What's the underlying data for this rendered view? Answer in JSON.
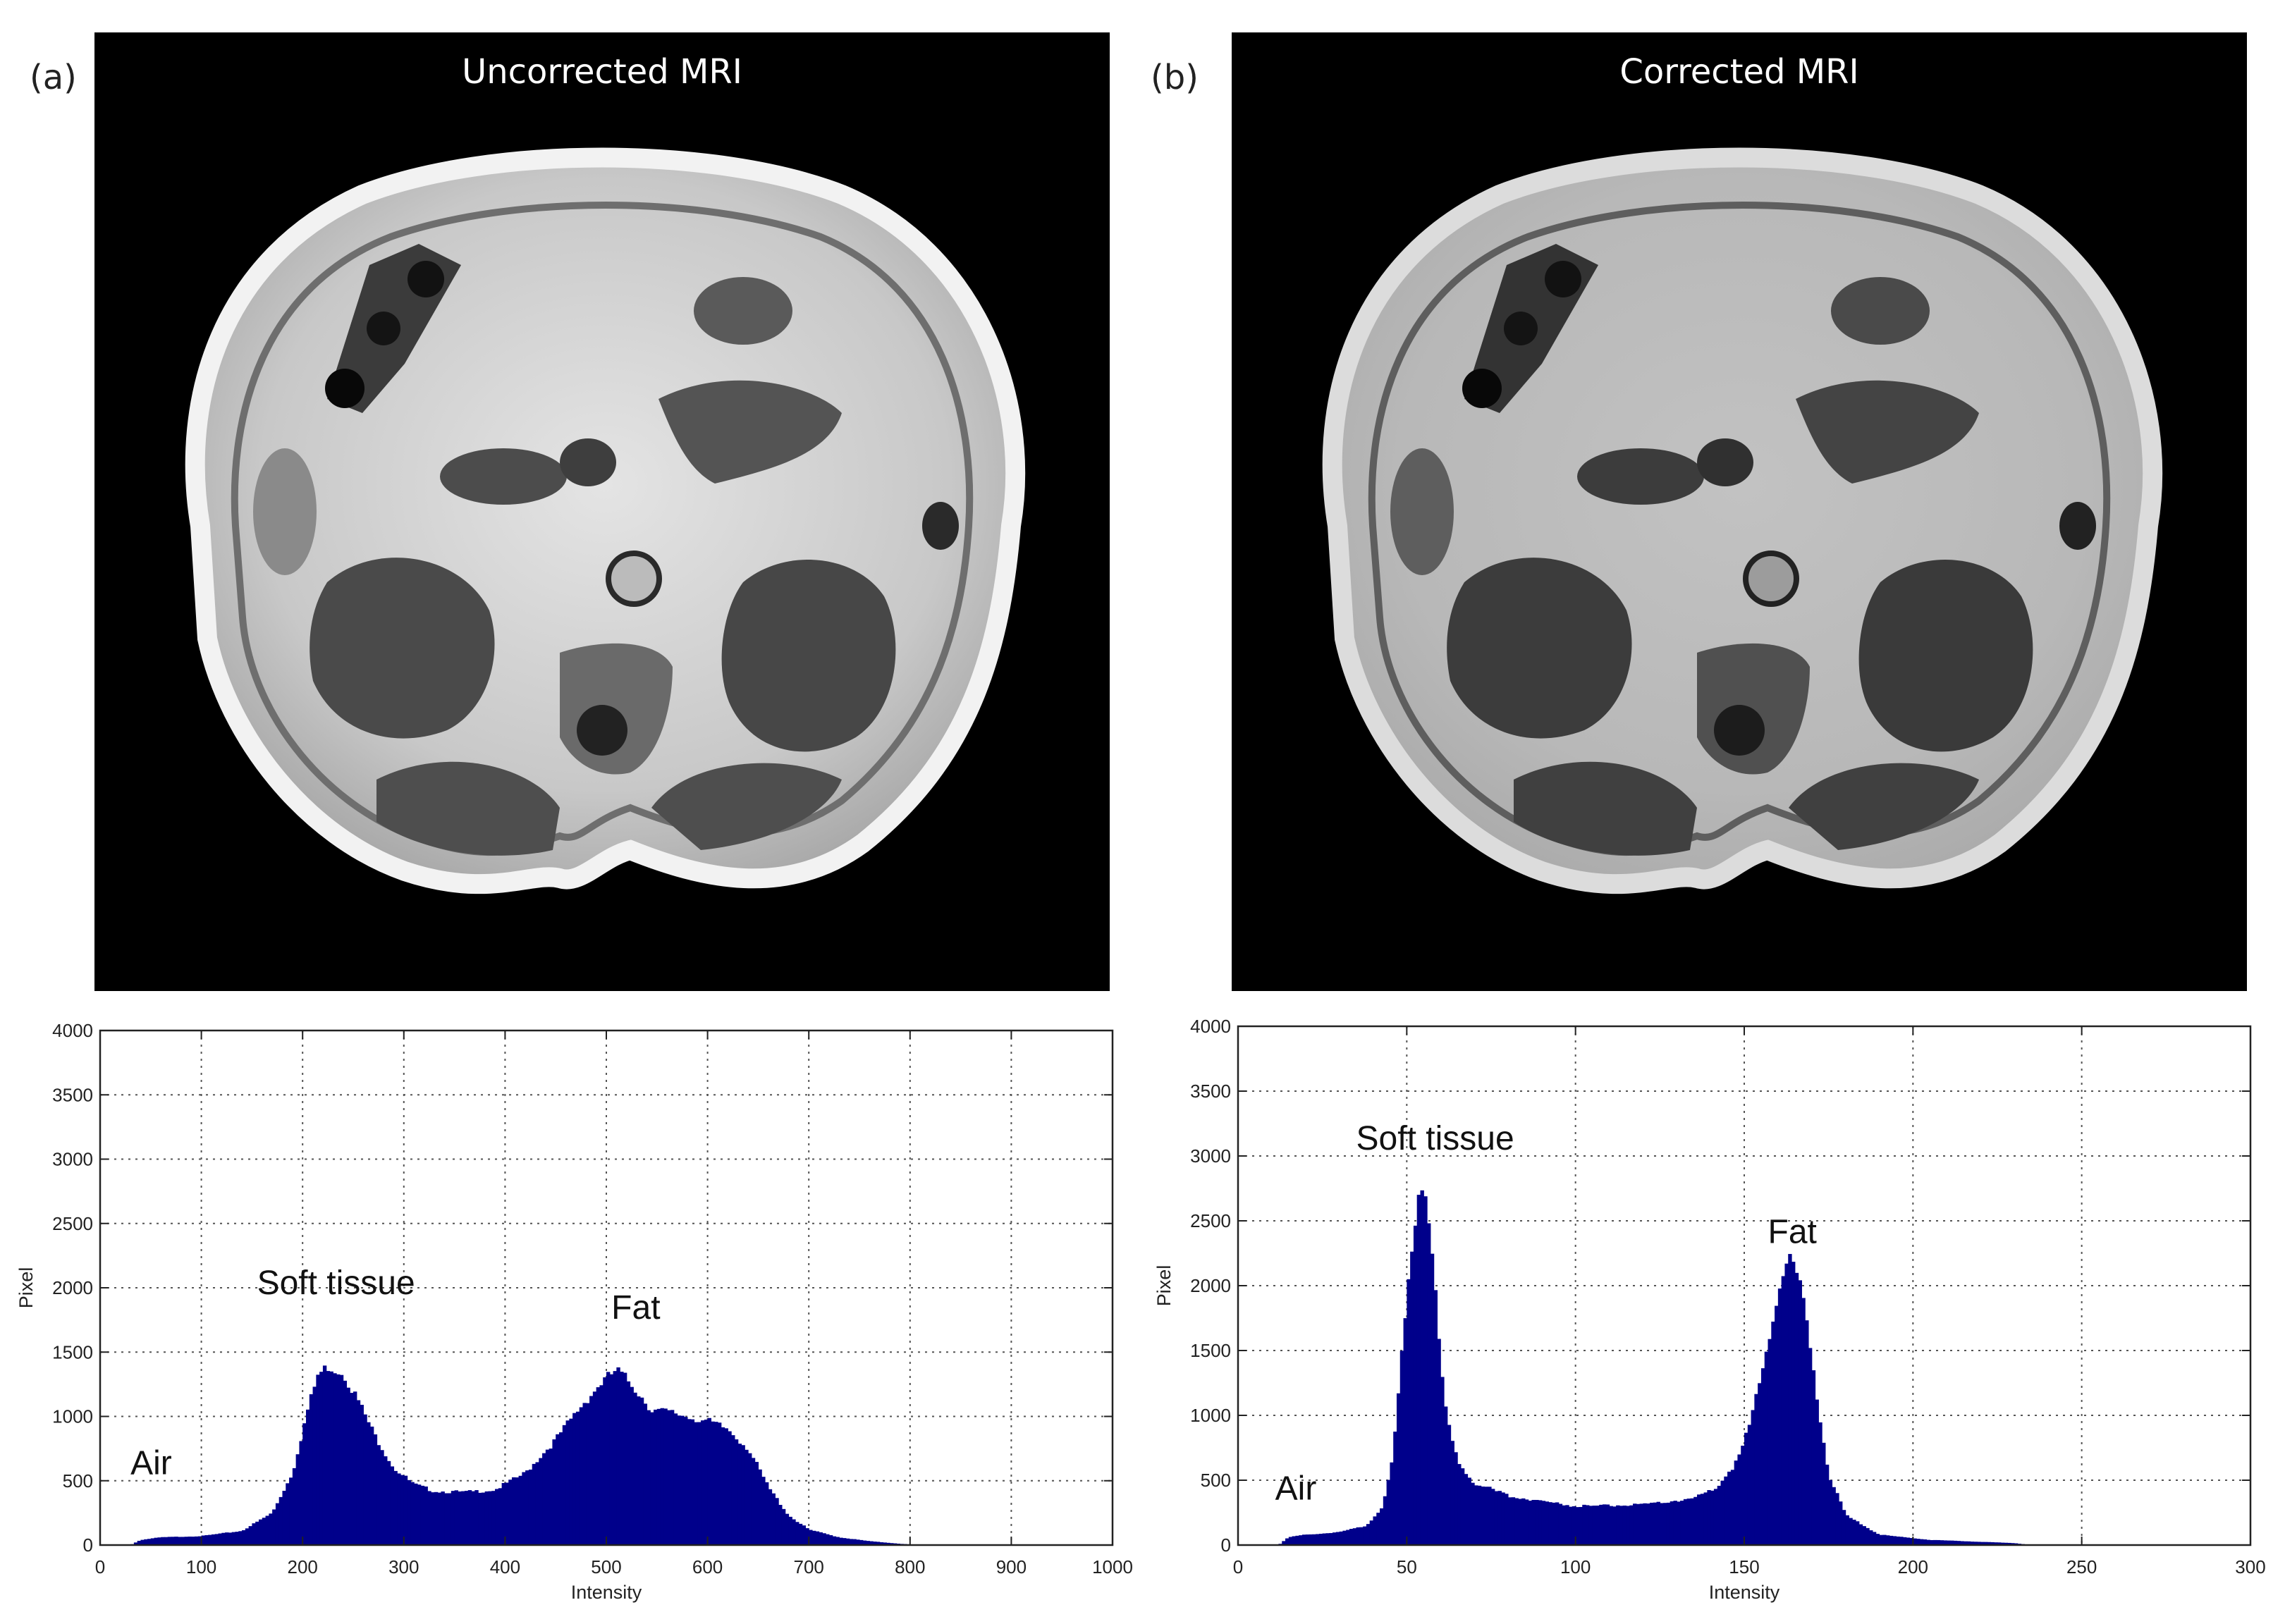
{
  "panels": [
    {
      "letter": "(a)",
      "title": "Uncorrected MRI"
    },
    {
      "letter": "(b)",
      "title": "Corrected MRI"
    }
  ],
  "chart_data": [
    {
      "type": "bar",
      "xlabel": "Intensity",
      "ylabel": "Pixel",
      "xlim": [
        0,
        1000
      ],
      "ylim": [
        0,
        4000
      ],
      "xticks": [
        0,
        100,
        200,
        300,
        400,
        500,
        600,
        700,
        800,
        900,
        1000
      ],
      "yticks": [
        0,
        500,
        1000,
        1500,
        2000,
        2500,
        3000,
        3500,
        4000
      ],
      "grid": true,
      "color": "#00008b",
      "annotations": [
        {
          "text": "Air",
          "x": 30,
          "y": 550
        },
        {
          "text": "Soft tissue",
          "x": 155,
          "y": 1950
        },
        {
          "text": "Fat",
          "x": 505,
          "y": 1760
        }
      ],
      "profile": [
        [
          30,
          0
        ],
        [
          40,
          40
        ],
        [
          60,
          60
        ],
        [
          100,
          70
        ],
        [
          140,
          110
        ],
        [
          170,
          250
        ],
        [
          190,
          560
        ],
        [
          205,
          1050
        ],
        [
          215,
          1320
        ],
        [
          225,
          1390
        ],
        [
          240,
          1340
        ],
        [
          255,
          1120
        ],
        [
          270,
          870
        ],
        [
          290,
          600
        ],
        [
          310,
          470
        ],
        [
          330,
          420
        ],
        [
          360,
          410
        ],
        [
          390,
          430
        ],
        [
          420,
          560
        ],
        [
          450,
          820
        ],
        [
          475,
          1080
        ],
        [
          495,
          1260
        ],
        [
          510,
          1360
        ],
        [
          525,
          1250
        ],
        [
          545,
          1050
        ],
        [
          570,
          1020
        ],
        [
          600,
          960
        ],
        [
          620,
          900
        ],
        [
          640,
          750
        ],
        [
          660,
          450
        ],
        [
          680,
          230
        ],
        [
          700,
          120
        ],
        [
          730,
          60
        ],
        [
          760,
          30
        ],
        [
          790,
          10
        ],
        [
          810,
          0
        ]
      ]
    },
    {
      "type": "bar",
      "xlabel": "Intensity",
      "ylabel": "Pixel",
      "xlim": [
        0,
        300
      ],
      "ylim": [
        0,
        4000
      ],
      "xticks": [
        0,
        50,
        100,
        150,
        200,
        250,
        300
      ],
      "yticks": [
        0,
        500,
        1000,
        1500,
        2000,
        2500,
        3000,
        3500,
        4000
      ],
      "grid": true,
      "color": "#00008b",
      "annotations": [
        {
          "text": "Air",
          "x": 11,
          "y": 350
        },
        {
          "text": "Soft tissue",
          "x": 35,
          "y": 3050
        },
        {
          "text": "Fat",
          "x": 157,
          "y": 2330
        }
      ],
      "profile": [
        [
          12,
          0
        ],
        [
          15,
          60
        ],
        [
          20,
          80
        ],
        [
          30,
          100
        ],
        [
          38,
          150
        ],
        [
          43,
          300
        ],
        [
          46,
          700
        ],
        [
          49,
          1600
        ],
        [
          52,
          2450
        ],
        [
          54,
          2820
        ],
        [
          56,
          2700
        ],
        [
          58,
          2150
        ],
        [
          60,
          1400
        ],
        [
          62,
          950
        ],
        [
          65,
          650
        ],
        [
          70,
          480
        ],
        [
          80,
          380
        ],
        [
          100,
          300
        ],
        [
          120,
          310
        ],
        [
          135,
          360
        ],
        [
          142,
          450
        ],
        [
          148,
          650
        ],
        [
          152,
          950
        ],
        [
          156,
          1450
        ],
        [
          160,
          1950
        ],
        [
          163,
          2200
        ],
        [
          166,
          2050
        ],
        [
          169,
          1650
        ],
        [
          172,
          1050
        ],
        [
          175,
          550
        ],
        [
          180,
          230
        ],
        [
          190,
          80
        ],
        [
          205,
          40
        ],
        [
          230,
          15
        ],
        [
          235,
          0
        ]
      ]
    }
  ]
}
